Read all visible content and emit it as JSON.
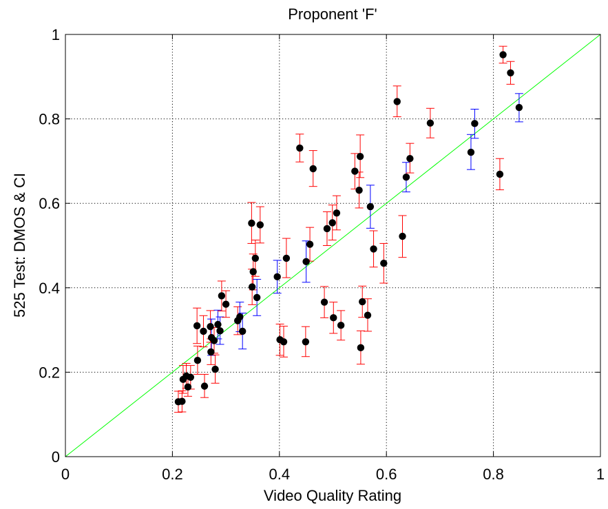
{
  "chart_data": {
    "type": "scatter",
    "title": "Proponent 'F'",
    "xlabel": "Video Quality Rating",
    "ylabel": "525 Test: DMOS & CI",
    "xlim": [
      0,
      1
    ],
    "ylim": [
      0,
      1
    ],
    "xticks": [
      "0",
      "0.2",
      "0.4",
      "0.6",
      "0.8",
      "1"
    ],
    "yticks": [
      "0",
      "0.2",
      "0.4",
      "0.6",
      "0.8",
      "1"
    ],
    "grid": true,
    "reference_line": {
      "x": [
        0,
        1
      ],
      "y": [
        0,
        1
      ],
      "color": "#00ff00"
    },
    "colors": {
      "marker": "#000000",
      "ci_red": "#ff0000",
      "ci_blue": "#0000ff"
    },
    "points": [
      {
        "x": 0.211,
        "y": 0.13,
        "lo": 0.105,
        "hi": 0.155,
        "ci": "red"
      },
      {
        "x": 0.218,
        "y": 0.131,
        "lo": 0.106,
        "hi": 0.156,
        "ci": "red"
      },
      {
        "x": 0.22,
        "y": 0.183,
        "lo": 0.15,
        "hi": 0.216,
        "ci": "red"
      },
      {
        "x": 0.226,
        "y": 0.191,
        "lo": 0.162,
        "hi": 0.221,
        "ci": "red"
      },
      {
        "x": 0.229,
        "y": 0.165,
        "lo": 0.143,
        "hi": 0.188,
        "ci": "red"
      },
      {
        "x": 0.234,
        "y": 0.188,
        "lo": 0.16,
        "hi": 0.216,
        "ci": "red"
      },
      {
        "x": 0.246,
        "y": 0.31,
        "lo": 0.268,
        "hi": 0.352,
        "ci": "red"
      },
      {
        "x": 0.247,
        "y": 0.228,
        "lo": 0.195,
        "hi": 0.262,
        "ci": "red"
      },
      {
        "x": 0.258,
        "y": 0.297,
        "lo": 0.26,
        "hi": 0.334,
        "ci": "red"
      },
      {
        "x": 0.26,
        "y": 0.167,
        "lo": 0.14,
        "hi": 0.195,
        "ci": "red"
      },
      {
        "x": 0.271,
        "y": 0.308,
        "lo": 0.271,
        "hi": 0.346,
        "ci": "red"
      },
      {
        "x": 0.272,
        "y": 0.248,
        "lo": 0.218,
        "hi": 0.279,
        "ci": "red"
      },
      {
        "x": 0.273,
        "y": 0.282,
        "lo": 0.24,
        "hi": 0.326,
        "ci": "blue"
      },
      {
        "x": 0.278,
        "y": 0.275,
        "lo": 0.245,
        "hi": 0.306,
        "ci": "red"
      },
      {
        "x": 0.28,
        "y": 0.207,
        "lo": 0.174,
        "hi": 0.241,
        "ci": "red"
      },
      {
        "x": 0.285,
        "y": 0.313,
        "lo": 0.279,
        "hi": 0.347,
        "ci": "blue"
      },
      {
        "x": 0.289,
        "y": 0.298,
        "lo": 0.266,
        "hi": 0.331,
        "ci": "blue"
      },
      {
        "x": 0.292,
        "y": 0.381,
        "lo": 0.345,
        "hi": 0.416,
        "ci": "red"
      },
      {
        "x": 0.3,
        "y": 0.361,
        "lo": 0.33,
        "hi": 0.393,
        "ci": "red"
      },
      {
        "x": 0.322,
        "y": 0.322,
        "lo": 0.289,
        "hi": 0.355,
        "ci": "red"
      },
      {
        "x": 0.326,
        "y": 0.331,
        "lo": 0.296,
        "hi": 0.366,
        "ci": "blue"
      },
      {
        "x": 0.331,
        "y": 0.297,
        "lo": 0.255,
        "hi": 0.34,
        "ci": "blue"
      },
      {
        "x": 0.348,
        "y": 0.553,
        "lo": 0.505,
        "hi": 0.602,
        "ci": "red"
      },
      {
        "x": 0.349,
        "y": 0.402,
        "lo": 0.36,
        "hi": 0.444,
        "ci": "red"
      },
      {
        "x": 0.351,
        "y": 0.438,
        "lo": 0.395,
        "hi": 0.48,
        "ci": "red"
      },
      {
        "x": 0.355,
        "y": 0.47,
        "lo": 0.427,
        "hi": 0.513,
        "ci": "red"
      },
      {
        "x": 0.358,
        "y": 0.377,
        "lo": 0.334,
        "hi": 0.42,
        "ci": "blue"
      },
      {
        "x": 0.364,
        "y": 0.549,
        "lo": 0.506,
        "hi": 0.592,
        "ci": "red"
      },
      {
        "x": 0.396,
        "y": 0.426,
        "lo": 0.387,
        "hi": 0.465,
        "ci": "blue"
      },
      {
        "x": 0.401,
        "y": 0.277,
        "lo": 0.24,
        "hi": 0.314,
        "ci": "red"
      },
      {
        "x": 0.408,
        "y": 0.272,
        "lo": 0.236,
        "hi": 0.309,
        "ci": "red"
      },
      {
        "x": 0.413,
        "y": 0.47,
        "lo": 0.424,
        "hi": 0.517,
        "ci": "red"
      },
      {
        "x": 0.438,
        "y": 0.731,
        "lo": 0.698,
        "hi": 0.764,
        "ci": "red"
      },
      {
        "x": 0.449,
        "y": 0.272,
        "lo": 0.237,
        "hi": 0.308,
        "ci": "red"
      },
      {
        "x": 0.45,
        "y": 0.462,
        "lo": 0.413,
        "hi": 0.511,
        "ci": "blue"
      },
      {
        "x": 0.457,
        "y": 0.503,
        "lo": 0.463,
        "hi": 0.543,
        "ci": "red"
      },
      {
        "x": 0.463,
        "y": 0.682,
        "lo": 0.64,
        "hi": 0.725,
        "ci": "red"
      },
      {
        "x": 0.484,
        "y": 0.366,
        "lo": 0.329,
        "hi": 0.403,
        "ci": "red"
      },
      {
        "x": 0.489,
        "y": 0.54,
        "lo": 0.5,
        "hi": 0.58,
        "ci": "red"
      },
      {
        "x": 0.499,
        "y": 0.554,
        "lo": 0.513,
        "hi": 0.596,
        "ci": "red"
      },
      {
        "x": 0.501,
        "y": 0.329,
        "lo": 0.292,
        "hi": 0.366,
        "ci": "red"
      },
      {
        "x": 0.507,
        "y": 0.577,
        "lo": 0.537,
        "hi": 0.618,
        "ci": "red"
      },
      {
        "x": 0.515,
        "y": 0.311,
        "lo": 0.276,
        "hi": 0.346,
        "ci": "red"
      },
      {
        "x": 0.541,
        "y": 0.676,
        "lo": 0.634,
        "hi": 0.718,
        "ci": "red"
      },
      {
        "x": 0.549,
        "y": 0.631,
        "lo": 0.589,
        "hi": 0.674,
        "ci": "red"
      },
      {
        "x": 0.551,
        "y": 0.711,
        "lo": 0.661,
        "hi": 0.762,
        "ci": "red"
      },
      {
        "x": 0.552,
        "y": 0.258,
        "lo": 0.219,
        "hi": 0.298,
        "ci": "red"
      },
      {
        "x": 0.555,
        "y": 0.367,
        "lo": 0.33,
        "hi": 0.404,
        "ci": "red"
      },
      {
        "x": 0.565,
        "y": 0.335,
        "lo": 0.297,
        "hi": 0.374,
        "ci": "red"
      },
      {
        "x": 0.57,
        "y": 0.592,
        "lo": 0.541,
        "hi": 0.643,
        "ci": "blue"
      },
      {
        "x": 0.576,
        "y": 0.492,
        "lo": 0.449,
        "hi": 0.535,
        "ci": "red"
      },
      {
        "x": 0.595,
        "y": 0.458,
        "lo": 0.411,
        "hi": 0.505,
        "ci": "red"
      },
      {
        "x": 0.62,
        "y": 0.841,
        "lo": 0.805,
        "hi": 0.878,
        "ci": "red"
      },
      {
        "x": 0.63,
        "y": 0.522,
        "lo": 0.472,
        "hi": 0.571,
        "ci": "red"
      },
      {
        "x": 0.637,
        "y": 0.662,
        "lo": 0.627,
        "hi": 0.697,
        "ci": "blue"
      },
      {
        "x": 0.644,
        "y": 0.706,
        "lo": 0.672,
        "hi": 0.742,
        "ci": "red"
      },
      {
        "x": 0.682,
        "y": 0.79,
        "lo": 0.755,
        "hi": 0.825,
        "ci": "red"
      },
      {
        "x": 0.758,
        "y": 0.721,
        "lo": 0.68,
        "hi": 0.763,
        "ci": "blue"
      },
      {
        "x": 0.765,
        "y": 0.789,
        "lo": 0.754,
        "hi": 0.823,
        "ci": "blue"
      },
      {
        "x": 0.812,
        "y": 0.669,
        "lo": 0.632,
        "hi": 0.706,
        "ci": "red"
      },
      {
        "x": 0.818,
        "y": 0.952,
        "lo": 0.932,
        "hi": 0.972,
        "ci": "red"
      },
      {
        "x": 0.832,
        "y": 0.909,
        "lo": 0.882,
        "hi": 0.936,
        "ci": "red"
      },
      {
        "x": 0.848,
        "y": 0.827,
        "lo": 0.793,
        "hi": 0.86,
        "ci": "blue"
      }
    ]
  }
}
